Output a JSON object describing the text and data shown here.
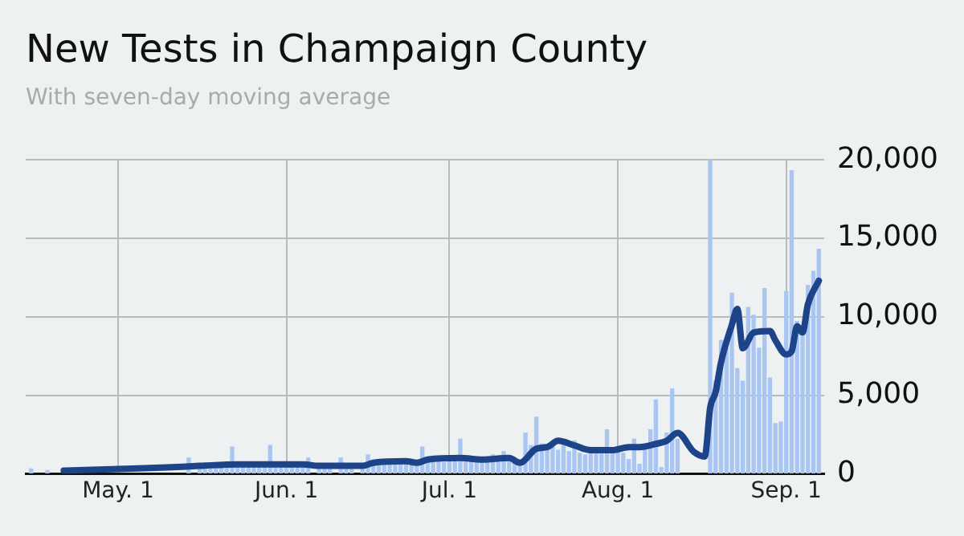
{
  "chart_data": {
    "type": "bar",
    "title": "New Tests in Champaign County",
    "subtitle": "With seven-day moving average",
    "x": [
      "--04-15",
      "--04-16",
      "--04-17",
      "--04-18",
      "--04-19",
      "--04-20",
      "--04-21",
      "--04-22",
      "--04-23",
      "--04-24",
      "--04-25",
      "--04-26",
      "--04-27",
      "--04-28",
      "--04-29",
      "--04-30",
      "--05-01",
      "--05-02",
      "--05-03",
      "--05-04",
      "--05-05",
      "--05-06",
      "--05-07",
      "--05-08",
      "--05-09",
      "--05-10",
      "--05-11",
      "--05-12",
      "--05-13",
      "--05-14",
      "--05-15",
      "--05-16",
      "--05-17",
      "--05-18",
      "--05-19",
      "--05-20",
      "--05-21",
      "--05-22",
      "--05-23",
      "--05-24",
      "--05-25",
      "--05-26",
      "--05-27",
      "--05-28",
      "--05-29",
      "--05-30",
      "--05-31",
      "--06-01",
      "--06-02",
      "--06-03",
      "--06-04",
      "--06-05",
      "--06-06",
      "--06-07",
      "--06-08",
      "--06-09",
      "--06-10",
      "--06-11",
      "--06-12",
      "--06-13",
      "--06-14",
      "--06-15",
      "--06-16",
      "--06-17",
      "--06-18",
      "--06-19",
      "--06-20",
      "--06-21",
      "--06-22",
      "--06-23",
      "--06-24",
      "--06-25",
      "--06-26",
      "--06-27",
      "--06-28",
      "--06-29",
      "--06-30",
      "--07-01",
      "--07-02",
      "--07-03",
      "--07-04",
      "--07-05",
      "--07-06",
      "--07-07",
      "--07-08",
      "--07-09",
      "--07-10",
      "--07-11",
      "--07-12",
      "--07-13",
      "--07-14",
      "--07-15",
      "--07-16",
      "--07-17",
      "--07-18",
      "--07-19",
      "--07-20",
      "--07-21",
      "--07-22",
      "--07-23",
      "--07-24",
      "--07-25",
      "--07-26",
      "--07-27",
      "--07-28",
      "--07-29",
      "--07-30",
      "--07-31",
      "--08-01",
      "--08-02",
      "--08-03",
      "--08-04",
      "--08-05",
      "--08-06",
      "--08-07",
      "--08-08",
      "--08-09",
      "--08-10",
      "--08-11",
      "--08-12",
      "--08-13",
      "--08-14",
      "--08-15",
      "--08-16",
      "--08-17",
      "--08-18",
      "--08-19",
      "--08-20",
      "--08-21",
      "--08-22",
      "--08-23",
      "--08-24",
      "--08-25",
      "--08-26",
      "--08-27",
      "--08-28",
      "--08-29",
      "--08-30",
      "--08-31",
      "--09-01",
      "--09-02",
      "--09-03",
      "--09-04",
      "--09-05",
      "--09-06",
      "--09-07"
    ],
    "series": [
      {
        "color": "#a9c5f2",
        "values": [
          300,
          null,
          null,
          200,
          null,
          null,
          null,
          null,
          null,
          null,
          null,
          null,
          null,
          null,
          null,
          null,
          null,
          null,
          null,
          null,
          null,
          null,
          null,
          null,
          null,
          null,
          null,
          null,
          null,
          1000,
          null,
          400,
          400,
          300,
          500,
          500,
          600,
          1700,
          500,
          500,
          400,
          600,
          500,
          600,
          1800,
          500,
          600,
          600,
          500,
          500,
          600,
          1000,
          null,
          500,
          500,
          400,
          null,
          1000,
          500,
          400,
          null,
          400,
          1200,
          700,
          600,
          800,
          700,
          700,
          600,
          600,
          800,
          700,
          1700,
          800,
          900,
          1000,
          700,
          900,
          1000,
          2200,
          1100,
          800,
          900,
          1000,
          900,
          1200,
          1100,
          1400,
          900,
          800,
          700,
          2600,
          1800,
          3600,
          1900,
          1600,
          1700,
          1500,
          2000,
          1400,
          2100,
          1300,
          1200,
          1500,
          1400,
          1600,
          2800,
          1500,
          1400,
          1300,
          900,
          2200,
          600,
          1600,
          2800,
          4700,
          400,
          2600,
          5400,
          2200,
          null,
          null,
          null,
          null,
          null,
          20000,
          5900,
          8500,
          8000,
          11500,
          6700,
          5900,
          10600,
          10100,
          8000,
          11800,
          6100,
          3200,
          3300,
          11600,
          19300,
          9700,
          9000,
          12000,
          12900,
          14300
        ]
      },
      {
        "type": "line",
        "color": "#1d4388",
        "x": [
          "--04-21",
          "--05-01",
          "--05-10",
          "--05-16",
          "--05-23",
          "--06-04",
          "--06-07",
          "--06-15",
          "--06-17",
          "--06-23",
          "--06-25",
          "--06-27",
          "--07-03",
          "--07-07",
          "--07-12",
          "--07-14",
          "--07-17",
          "--07-19",
          "--07-21",
          "--07-24",
          "--07-27",
          "--07-31",
          "--08-03",
          "--08-05",
          "--08-08",
          "--08-10",
          "--08-12",
          "--08-15",
          "--08-17",
          "--08-18",
          "--08-19",
          "--08-20",
          "--08-22",
          "--08-23",
          "--08-24",
          "--08-26",
          "--08-29",
          "--08-30",
          "--09-01",
          "--09-02",
          "--09-03",
          "--09-04",
          "--09-05",
          "--09-07"
        ],
        "values": [
          200,
          300,
          400,
          500,
          600,
          600,
          500,
          500,
          700,
          800,
          700,
          900,
          1000,
          900,
          1000,
          700,
          1600,
          1700,
          2100,
          1800,
          1500,
          1500,
          1700,
          1700,
          1900,
          2100,
          2600,
          1400,
          1100,
          4200,
          5200,
          7100,
          9500,
          10500,
          8000,
          9000,
          9100,
          8500,
          7600,
          7800,
          9400,
          9000,
          10800,
          12300
        ]
      }
    ],
    "xlim": [
      "--04-14",
      "--09-08"
    ],
    "xticks": [
      {
        "value": "--05-01",
        "label": "May. 1"
      },
      {
        "value": "--06-01",
        "label": "Jun. 1"
      },
      {
        "value": "--07-01",
        "label": "Jul. 1"
      },
      {
        "value": "--08-01",
        "label": "Aug. 1"
      },
      {
        "value": "--09-01",
        "label": "Sep. 1"
      }
    ],
    "ylim": [
      0,
      20000
    ],
    "yticks": [
      0,
      {
        "value": 5000,
        "label": "5,000"
      },
      {
        "value": 10000,
        "label": "10,000"
      },
      {
        "value": 15000,
        "label": "15,000"
      },
      {
        "value": 20000,
        "label": "20,000"
      }
    ],
    "grid": true,
    "legend": false,
    "marker": "none"
  }
}
